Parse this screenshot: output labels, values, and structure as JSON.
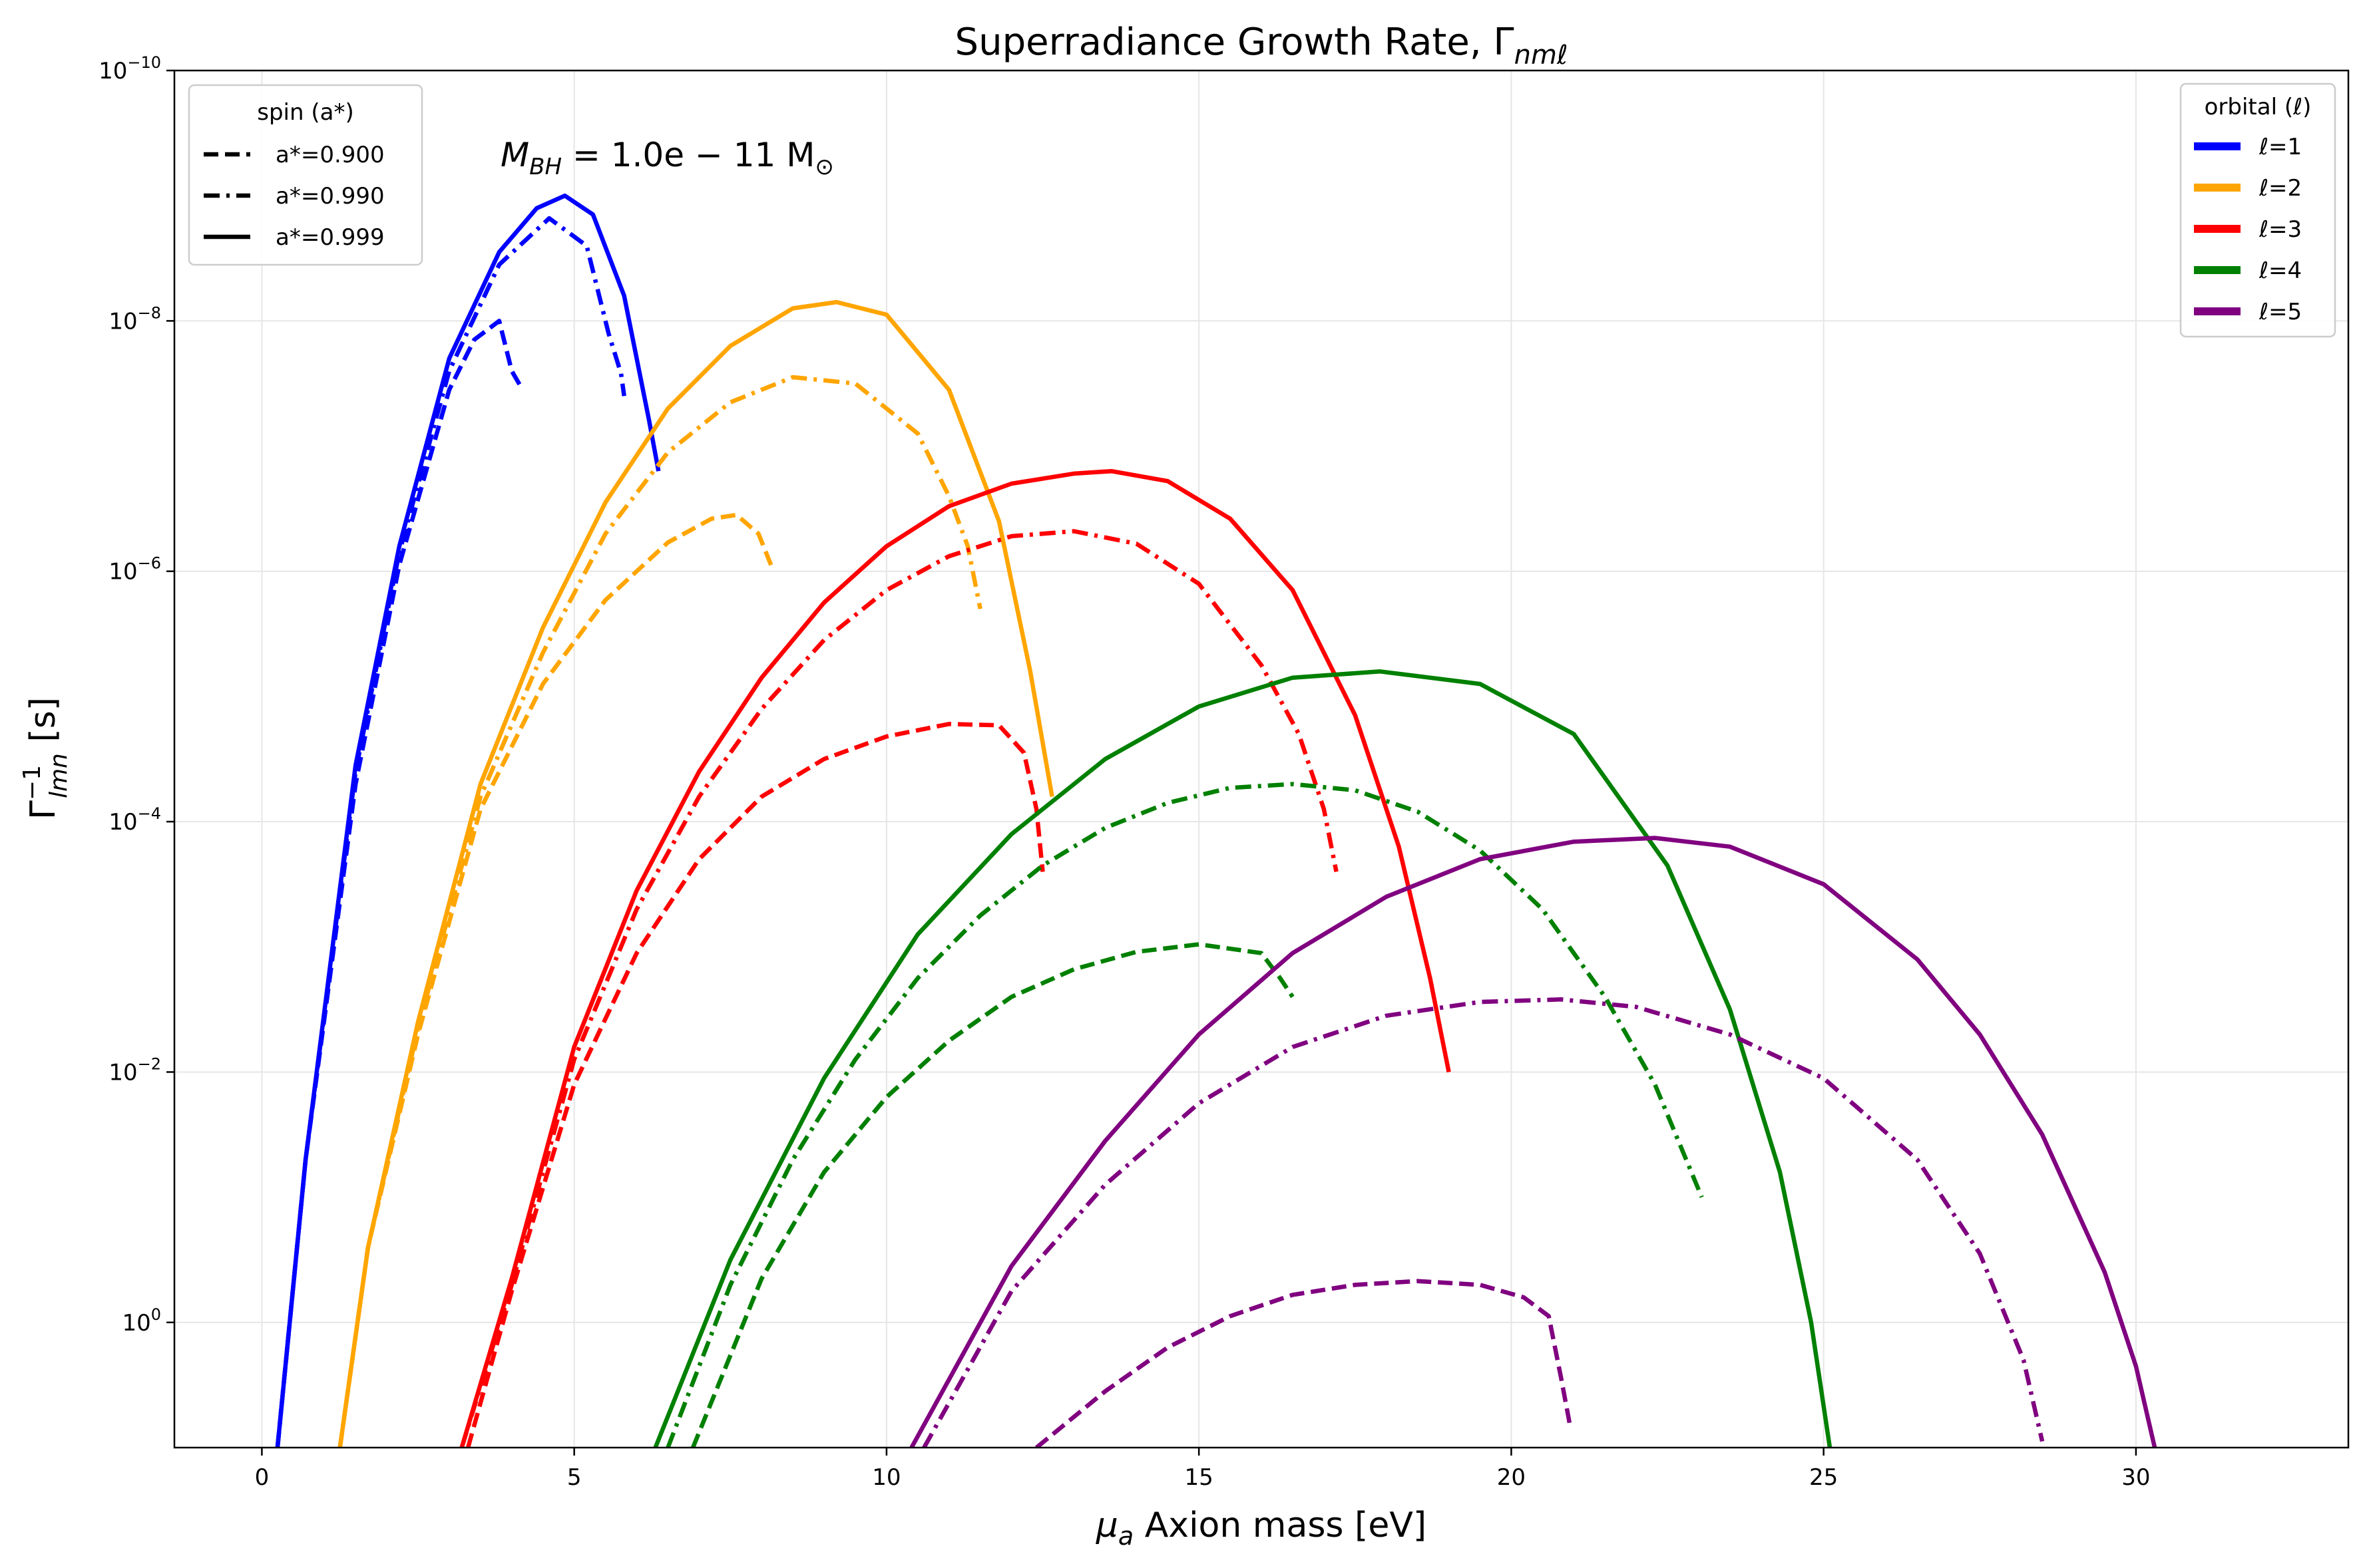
{
  "chart_data": {
    "type": "line",
    "title_main": "Superradiance Growth Rate, Γ",
    "title_sub": "nmℓ",
    "xlabel": "μ",
    "xlabel_sub": "a",
    "xlabel_rest": " Axion mass [eV]",
    "ylabel": "Γ",
    "ylabel_sup": "−1",
    "ylabel_sub": "lmn",
    "ylabel_rest": " [s]",
    "annotation": {
      "prefix": "M",
      "sub": "BH",
      "text": " = 1.0e − 11 M",
      "sun": "⊙"
    },
    "xlim": [
      -1.4,
      33.4
    ],
    "ylim_log": [
      1.0,
      -10.0
    ],
    "y_inverted": true,
    "grid": true,
    "x_ticks": [
      0,
      5,
      10,
      15,
      20,
      25,
      30
    ],
    "x_tick_labels": [
      "0",
      "5",
      "10",
      "15",
      "20",
      "25",
      "30"
    ],
    "y_ticks": [
      {
        "exp": -10,
        "label_base": "10",
        "label_exp": "−10"
      },
      {
        "exp": -8,
        "label_base": "10",
        "label_exp": "−8"
      },
      {
        "exp": -6,
        "label_base": "10",
        "label_exp": "−6"
      },
      {
        "exp": -4,
        "label_base": "10",
        "label_exp": "−4"
      },
      {
        "exp": -2,
        "label_base": "10",
        "label_exp": "−2"
      },
      {
        "exp": 0,
        "label_base": "10",
        "label_exp": "0"
      }
    ],
    "legend_spin": {
      "title": "spin (a*)",
      "placement": "top-left",
      "entries": [
        {
          "label": "a*=0.900",
          "style": "dashed"
        },
        {
          "label": "a*=0.990",
          "style": "dashdot"
        },
        {
          "label": "a*=0.999",
          "style": "solid"
        }
      ]
    },
    "legend_orbital": {
      "title": "orbital (ℓ)",
      "placement": "top-right",
      "entries": [
        {
          "label": "ℓ=1",
          "color": "#0000ff"
        },
        {
          "label": "ℓ=2",
          "color": "#ffa500"
        },
        {
          "label": "ℓ=3",
          "color": "#ff0000"
        },
        {
          "label": "ℓ=4",
          "color": "#008000"
        },
        {
          "label": "ℓ=5",
          "color": "#800080"
        }
      ]
    },
    "series": [
      {
        "l": 1,
        "spin": "0.900",
        "style": "dashed",
        "color": "#0000ff",
        "x": [
          0.25,
          0.7,
          1.5,
          2.2,
          3.0,
          3.4,
          3.8,
          4.0,
          4.15
        ],
        "log10_y": [
          1.0,
          -1.3,
          -4.3,
          -6.05,
          -7.45,
          -7.85,
          -8.0,
          -7.6,
          -7.47
        ]
      },
      {
        "l": 1,
        "spin": "0.990",
        "style": "dashdot",
        "color": "#0000ff",
        "x": [
          0.25,
          0.7,
          1.5,
          2.2,
          3.0,
          3.8,
          4.6,
          5.2,
          5.55,
          5.75,
          5.8
        ],
        "log10_y": [
          1.0,
          -1.3,
          -4.4,
          -6.15,
          -7.6,
          -8.45,
          -8.82,
          -8.6,
          -7.9,
          -7.58,
          -7.4
        ]
      },
      {
        "l": 1,
        "spin": "0.999",
        "style": "solid",
        "color": "#0000ff",
        "x": [
          0.25,
          0.7,
          1.5,
          2.2,
          3.0,
          3.8,
          4.4,
          4.85,
          5.3,
          5.8,
          6.2,
          6.35
        ],
        "log10_y": [
          1.0,
          -1.3,
          -4.45,
          -6.2,
          -7.7,
          -8.55,
          -8.9,
          -9.0,
          -8.85,
          -8.2,
          -7.2,
          -6.8
        ]
      },
      {
        "l": 2,
        "spin": "0.900",
        "style": "dashed",
        "color": "#ffa500",
        "x": [
          1.25,
          1.7,
          2.5,
          3.5,
          4.5,
          5.5,
          6.5,
          7.2,
          7.6,
          7.95,
          8.15,
          8.25
        ],
        "log10_y": [
          1.0,
          -0.6,
          -2.3,
          -4.1,
          -5.1,
          -5.77,
          -6.23,
          -6.42,
          -6.45,
          -6.3,
          -6.05,
          -6.05
        ]
      },
      {
        "l": 2,
        "spin": "0.990",
        "style": "dashdot",
        "color": "#ffa500",
        "x": [
          1.25,
          1.7,
          2.5,
          3.5,
          4.5,
          5.5,
          6.5,
          7.5,
          8.5,
          9.5,
          10.5,
          11.0,
          11.3,
          11.5
        ],
        "log10_y": [
          1.0,
          -0.6,
          -2.35,
          -4.2,
          -5.35,
          -6.3,
          -6.95,
          -7.35,
          -7.55,
          -7.5,
          -7.1,
          -6.6,
          -6.2,
          -5.7
        ]
      },
      {
        "l": 2,
        "spin": "0.999",
        "style": "solid",
        "color": "#ffa500",
        "x": [
          1.25,
          1.7,
          2.5,
          3.5,
          4.5,
          5.5,
          6.5,
          7.5,
          8.5,
          9.2,
          10.0,
          11.0,
          11.8,
          12.3,
          12.65
        ],
        "log10_y": [
          1.0,
          -0.6,
          -2.4,
          -4.3,
          -5.55,
          -6.55,
          -7.3,
          -7.8,
          -8.1,
          -8.15,
          -8.05,
          -7.45,
          -6.4,
          -5.2,
          -4.2
        ]
      },
      {
        "l": 3,
        "spin": "0.900",
        "style": "dashed",
        "color": "#ff0000",
        "x": [
          3.3,
          4.0,
          5.0,
          6.0,
          7.0,
          8.0,
          9.0,
          10.0,
          11.0,
          11.8,
          12.2,
          12.4,
          12.5
        ],
        "log10_y": [
          1.0,
          -0.25,
          -1.9,
          -2.95,
          -3.7,
          -4.2,
          -4.5,
          -4.68,
          -4.78,
          -4.77,
          -4.55,
          -4.1,
          -3.6
        ]
      },
      {
        "l": 3,
        "spin": "0.990",
        "style": "dashdot",
        "color": "#ff0000",
        "x": [
          3.2,
          4.0,
          5.0,
          6.0,
          7.0,
          8.0,
          9.0,
          10.0,
          11.0,
          12.0,
          13.0,
          14.0,
          15.0,
          16.0,
          16.6,
          17.0,
          17.2
        ],
        "log10_y": [
          1.0,
          -0.3,
          -2.1,
          -3.3,
          -4.2,
          -4.9,
          -5.45,
          -5.85,
          -6.12,
          -6.28,
          -6.32,
          -6.22,
          -5.9,
          -5.25,
          -4.7,
          -4.1,
          -3.6
        ]
      },
      {
        "l": 3,
        "spin": "0.999",
        "style": "solid",
        "color": "#ff0000",
        "x": [
          3.2,
          4.0,
          5.0,
          6.0,
          7.0,
          8.0,
          9.0,
          10.0,
          11.0,
          12.0,
          13.0,
          13.6,
          14.5,
          15.5,
          16.5,
          17.5,
          18.2,
          18.7,
          19.0
        ],
        "log10_y": [
          1.0,
          -0.35,
          -2.2,
          -3.45,
          -4.4,
          -5.15,
          -5.75,
          -6.2,
          -6.52,
          -6.7,
          -6.78,
          -6.8,
          -6.72,
          -6.42,
          -5.85,
          -4.85,
          -3.8,
          -2.75,
          -2.0
        ]
      },
      {
        "l": 4,
        "spin": "0.900",
        "style": "dashed",
        "color": "#008000",
        "x": [
          6.9,
          8.0,
          9.0,
          10.0,
          11.0,
          12.0,
          13.0,
          14.0,
          15.0,
          16.0,
          16.3,
          16.5
        ],
        "log10_y": [
          1.0,
          -0.35,
          -1.2,
          -1.8,
          -2.25,
          -2.6,
          -2.82,
          -2.96,
          -3.02,
          -2.95,
          -2.75,
          -2.6
        ]
      },
      {
        "l": 4,
        "spin": "0.990",
        "style": "dashdot",
        "color": "#008000",
        "x": [
          6.5,
          7.5,
          8.5,
          9.5,
          10.5,
          11.5,
          12.5,
          13.5,
          14.5,
          15.5,
          16.5,
          17.5,
          18.5,
          19.5,
          20.5,
          21.5,
          22.3,
          22.8,
          23.05
        ],
        "log10_y": [
          1.0,
          -0.3,
          -1.3,
          -2.1,
          -2.75,
          -3.25,
          -3.65,
          -3.95,
          -4.15,
          -4.27,
          -4.3,
          -4.25,
          -4.08,
          -3.77,
          -3.3,
          -2.6,
          -1.9,
          -1.3,
          -1.0
        ]
      },
      {
        "l": 4,
        "spin": "0.999",
        "style": "solid",
        "color": "#008000",
        "x": [
          6.3,
          7.5,
          9.0,
          10.5,
          12.0,
          13.5,
          15.0,
          16.5,
          17.9,
          19.5,
          21.0,
          22.5,
          23.5,
          24.3,
          24.8,
          25.1
        ],
        "log10_y": [
          1.0,
          -0.5,
          -1.95,
          -3.1,
          -3.9,
          -4.5,
          -4.92,
          -5.15,
          -5.2,
          -5.1,
          -4.7,
          -3.65,
          -2.5,
          -1.2,
          0.0,
          1.0
        ]
      },
      {
        "l": 5,
        "spin": "0.900",
        "style": "dashed",
        "color": "#800080",
        "x": [
          12.4,
          13.5,
          14.5,
          15.5,
          16.5,
          17.5,
          18.5,
          19.5,
          20.2,
          20.6,
          20.8,
          20.95
        ],
        "log10_y": [
          1.0,
          0.55,
          0.2,
          -0.05,
          -0.22,
          -0.3,
          -0.33,
          -0.3,
          -0.2,
          -0.05,
          0.45,
          0.85
        ]
      },
      {
        "l": 5,
        "spin": "0.990",
        "style": "dashdot",
        "color": "#800080",
        "x": [
          10.6,
          12.0,
          13.5,
          15.0,
          16.5,
          18.0,
          19.5,
          20.8,
          22.0,
          23.5,
          25.0,
          26.5,
          27.5,
          28.2,
          28.5
        ],
        "log10_y": [
          1.0,
          -0.25,
          -1.1,
          -1.75,
          -2.2,
          -2.45,
          -2.56,
          -2.58,
          -2.52,
          -2.3,
          -1.95,
          -1.3,
          -0.55,
          0.3,
          0.95
        ]
      },
      {
        "l": 5,
        "spin": "0.999",
        "style": "solid",
        "color": "#800080",
        "x": [
          10.4,
          12.0,
          13.5,
          15.0,
          16.5,
          18.0,
          19.5,
          21.0,
          22.3,
          23.5,
          25.0,
          26.5,
          27.5,
          28.5,
          29.5,
          30.0,
          30.3
        ],
        "log10_y": [
          1.0,
          -0.45,
          -1.45,
          -2.3,
          -2.95,
          -3.4,
          -3.7,
          -3.84,
          -3.87,
          -3.8,
          -3.5,
          -2.9,
          -2.3,
          -1.5,
          -0.4,
          0.35,
          1.0
        ]
      }
    ]
  }
}
